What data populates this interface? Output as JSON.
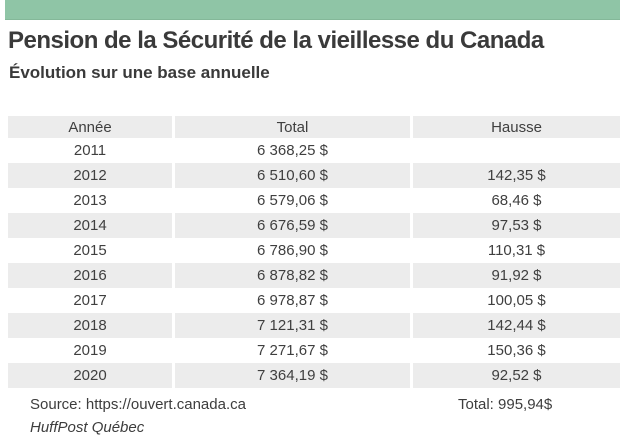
{
  "page": {
    "accent_color": "#8fc5a6",
    "row_alt_color": "#ececec",
    "text_color": "#3d3d3d"
  },
  "chart_data": {
    "type": "table",
    "title": "Pension de la Sécurité de la vieillesse du Canada",
    "subtitle": "Évolution sur une base annuelle",
    "columns": [
      "Année",
      "Total",
      "Hausse"
    ],
    "rows": [
      [
        "2011",
        "6 368,25 $",
        ""
      ],
      [
        "2012",
        "6 510,60 $",
        "142,35 $"
      ],
      [
        "2013",
        "6 579,06 $",
        "68,46 $"
      ],
      [
        "2014",
        "6 676,59 $",
        "97,53 $"
      ],
      [
        "2015",
        "6 786,90 $",
        "110,31 $"
      ],
      [
        "2016",
        "6 878,82 $",
        "91,92 $"
      ],
      [
        "2017",
        "6 978,87 $",
        "100,05 $"
      ],
      [
        "2018",
        "7 121,31 $",
        "142,44 $"
      ],
      [
        "2019",
        "7 271,67 $",
        "150,36 $"
      ],
      [
        "2020",
        "7 364,19 $",
        "92,52 $"
      ]
    ],
    "total_label": "Total: 995,94$",
    "source": "Source: https://ouvert.canada.ca",
    "credit": "HuffPost Québec"
  }
}
